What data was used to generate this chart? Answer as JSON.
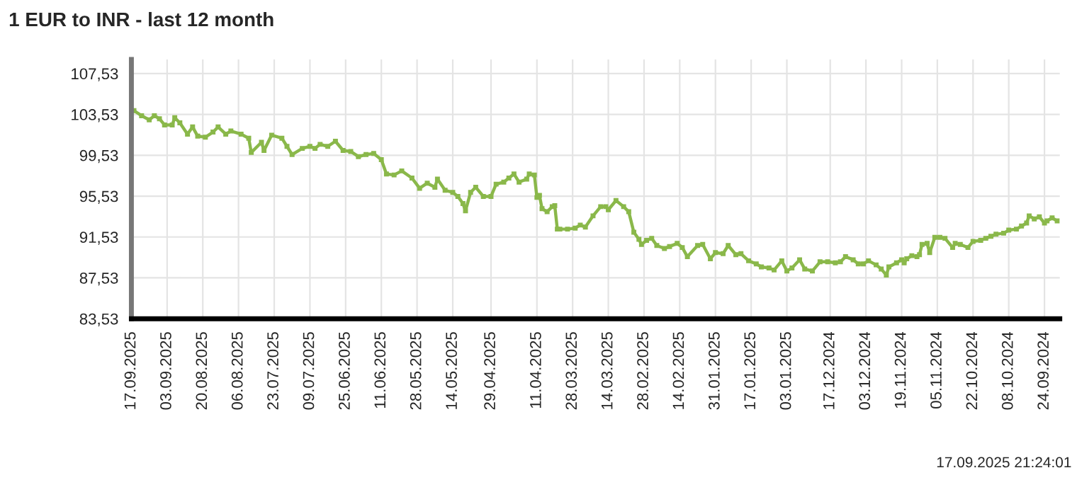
{
  "chart_data": {
    "type": "line",
    "title": "1 EUR to INR - last 12 month",
    "annotations": [
      "17.09.2025 21:24:01"
    ],
    "x": [
      "2025-09-16",
      "2025-09-13",
      "2025-09-10",
      "2025-09-08",
      "2025-09-06",
      "2025-09-04",
      "2025-09-01",
      "2025-08-31",
      "2025-08-29",
      "2025-08-26",
      "2025-08-24",
      "2025-08-22",
      "2025-08-19",
      "2025-08-16",
      "2025-08-14",
      "2025-08-11",
      "2025-08-09",
      "2025-08-05",
      "2025-08-02",
      "2025-08-01",
      "2025-07-28",
      "2025-07-27",
      "2025-07-24",
      "2025-07-20",
      "2025-07-18",
      "2025-07-16",
      "2025-07-12",
      "2025-07-09",
      "2025-07-07",
      "2025-07-05",
      "2025-07-02",
      "2025-06-29",
      "2025-06-26",
      "2025-06-23",
      "2025-06-20",
      "2025-06-17",
      "2025-06-14",
      "2025-06-11",
      "2025-06-09",
      "2025-06-06",
      "2025-06-03",
      "2025-05-30",
      "2025-05-27",
      "2025-05-24",
      "2025-05-21",
      "2025-05-20",
      "2025-05-17",
      "2025-05-14",
      "2025-05-12",
      "2025-05-10",
      "2025-05-09",
      "2025-05-07",
      "2025-05-05",
      "2025-05-02",
      "2025-04-29",
      "2025-04-27",
      "2025-04-24",
      "2025-04-22",
      "2025-04-20",
      "2025-04-18",
      "2025-04-15",
      "2025-04-14",
      "2025-04-12",
      "2025-04-11",
      "2025-04-10",
      "2025-04-09",
      "2025-04-07",
      "2025-04-05",
      "2025-04-04",
      "2025-04-03",
      "2025-04-02",
      "2025-03-30",
      "2025-03-27",
      "2025-03-25",
      "2025-03-23",
      "2025-03-20",
      "2025-03-17",
      "2025-03-15",
      "2025-03-14",
      "2025-03-11",
      "2025-03-08",
      "2025-03-06",
      "2025-03-04",
      "2025-03-02",
      "2025-03-01",
      "2025-02-27",
      "2025-02-25",
      "2025-02-23",
      "2025-02-20",
      "2025-02-18",
      "2025-02-15",
      "2025-02-13",
      "2025-02-11",
      "2025-02-07",
      "2025-02-05",
      "2025-02-02",
      "2025-01-31",
      "2025-01-28",
      "2025-01-26",
      "2025-01-23",
      "2025-01-21",
      "2025-01-18",
      "2025-01-15",
      "2025-01-13",
      "2025-01-10",
      "2025-01-08",
      "2025-01-05",
      "2025-01-03",
      "2025-01-01",
      "2024-12-29",
      "2024-12-27",
      "2024-12-24",
      "2024-12-21",
      "2024-12-18",
      "2024-12-15",
      "2024-12-13",
      "2024-12-11",
      "2024-12-08",
      "2024-12-06",
      "2024-12-04",
      "2024-12-02",
      "2024-11-29",
      "2024-11-27",
      "2024-11-25",
      "2024-11-24",
      "2024-11-21",
      "2024-11-19",
      "2024-11-18",
      "2024-11-17",
      "2024-11-15",
      "2024-11-13",
      "2024-11-12",
      "2024-11-11",
      "2024-11-09",
      "2024-11-08",
      "2024-11-06",
      "2024-11-04",
      "2024-11-02",
      "2024-10-30",
      "2024-10-29",
      "2024-10-27",
      "2024-10-24",
      "2024-10-22",
      "2024-10-19",
      "2024-10-17",
      "2024-10-15",
      "2024-10-13",
      "2024-10-10",
      "2024-10-08",
      "2024-10-05",
      "2024-10-03",
      "2024-10-01",
      "2024-09-30",
      "2024-09-28",
      "2024-09-26",
      "2024-09-24",
      "2024-09-23",
      "2024-09-21",
      "2024-09-19"
    ],
    "series": [
      {
        "color": "#8ab84a",
        "values": [
          103.9,
          103.4,
          103.0,
          103.4,
          103.1,
          102.5,
          102.5,
          103.2,
          102.7,
          101.6,
          102.3,
          101.4,
          101.3,
          101.8,
          102.3,
          101.6,
          101.9,
          101.6,
          101.2,
          99.8,
          100.8,
          100.0,
          101.5,
          101.2,
          100.4,
          99.6,
          100.2,
          100.4,
          100.2,
          100.6,
          100.4,
          100.9,
          100.0,
          99.9,
          99.4,
          99.6,
          99.7,
          99.1,
          97.7,
          97.6,
          98.0,
          97.3,
          96.3,
          96.8,
          96.4,
          97.2,
          96.1,
          95.9,
          95.5,
          94.8,
          94.1,
          95.9,
          96.4,
          95.5,
          95.5,
          96.7,
          96.9,
          97.3,
          97.7,
          96.9,
          97.2,
          97.7,
          97.6,
          95.4,
          95.6,
          94.3,
          94.0,
          94.5,
          94.6,
          92.3,
          92.3,
          92.3,
          92.4,
          92.7,
          92.5,
          93.6,
          94.5,
          94.5,
          94.2,
          95.1,
          94.5,
          94.0,
          92.0,
          91.3,
          90.8,
          91.2,
          91.4,
          90.7,
          90.4,
          90.6,
          90.9,
          90.5,
          89.6,
          90.7,
          90.8,
          89.4,
          90.0,
          89.9,
          90.7,
          89.8,
          89.9,
          89.2,
          88.9,
          88.6,
          88.5,
          88.3,
          89.2,
          88.2,
          88.5,
          89.3,
          88.4,
          88.2,
          89.1,
          89.1,
          89.0,
          89.1,
          89.6,
          89.3,
          88.9,
          88.9,
          89.2,
          88.8,
          88.4,
          87.8,
          88.6,
          89.0,
          89.3,
          89.0,
          89.4,
          89.7,
          89.6,
          89.8,
          90.8,
          90.9,
          90.0,
          91.5,
          91.5,
          91.4,
          90.5,
          90.9,
          90.8,
          90.5,
          91.1,
          91.2,
          91.4,
          91.6,
          91.8,
          91.9,
          92.2,
          92.3,
          92.6,
          92.9,
          93.6,
          93.3,
          93.5,
          92.9,
          93.1,
          93.4,
          93.1
        ]
      }
    ],
    "xlim": [
      "2025-09-17",
      "2024-09-18"
    ],
    "xticks": [
      {
        "value": "2025-09-17",
        "label": "17.09.2025"
      },
      {
        "value": "2025-09-03",
        "label": "03.09.2025"
      },
      {
        "value": "2025-08-20",
        "label": "20.08.2025"
      },
      {
        "value": "2025-08-06",
        "label": "06.08.2025"
      },
      {
        "value": "2025-07-23",
        "label": "23.07.2025"
      },
      {
        "value": "2025-07-09",
        "label": "09.07.2025"
      },
      {
        "value": "2025-06-25",
        "label": "25.06.2025"
      },
      {
        "value": "2025-06-11",
        "label": "11.06.2025"
      },
      {
        "value": "2025-05-28",
        "label": "28.05.2025"
      },
      {
        "value": "2025-05-14",
        "label": "14.05.2025"
      },
      {
        "value": "2025-04-29",
        "label": "29.04.2025"
      },
      {
        "value": "2025-04-11",
        "label": "11.04.2025"
      },
      {
        "value": "2025-03-28",
        "label": "28.03.2025"
      },
      {
        "value": "2025-03-14",
        "label": "14.03.2025"
      },
      {
        "value": "2025-02-28",
        "label": "28.02.2025"
      },
      {
        "value": "2025-02-14",
        "label": "14.02.2025"
      },
      {
        "value": "2025-01-31",
        "label": "31.01.2025"
      },
      {
        "value": "2025-01-17",
        "label": "17.01.2025"
      },
      {
        "value": "2025-01-03",
        "label": "03.01.2025"
      },
      {
        "value": "2024-12-17",
        "label": "17.12.2024"
      },
      {
        "value": "2024-12-03",
        "label": "03.12.2024"
      },
      {
        "value": "2024-11-19",
        "label": "19.11.2024"
      },
      {
        "value": "2024-11-05",
        "label": "05.11.2024"
      },
      {
        "value": "2024-10-22",
        "label": "22.10.2024"
      },
      {
        "value": "2024-10-08",
        "label": "08.10.2024"
      },
      {
        "value": "2024-09-24",
        "label": "24.09.2024"
      }
    ],
    "ylim": [
      83.53,
      108.9
    ],
    "yticks": [
      {
        "value": 83.53,
        "label": "83,53"
      },
      {
        "value": 87.53,
        "label": "87,53"
      },
      {
        "value": 91.53,
        "label": "91,53"
      },
      {
        "value": 95.53,
        "label": "95,53"
      },
      {
        "value": 99.53,
        "label": "99,53"
      },
      {
        "value": 103.53,
        "label": "103,53"
      },
      {
        "value": 107.53,
        "label": "107,53"
      }
    ],
    "grid": true,
    "marker": "square",
    "line_style": "solid"
  }
}
